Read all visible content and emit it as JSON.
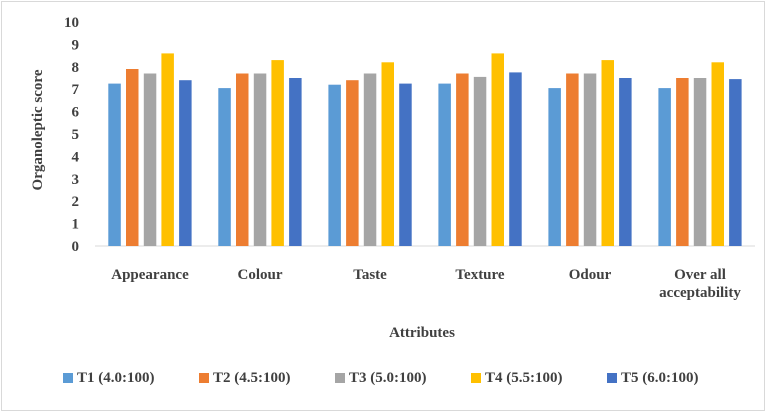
{
  "chart_data": {
    "type": "bar",
    "title": "",
    "xlabel": "Attributes",
    "ylabel": "Organoleptic score",
    "ylim": [
      0,
      10
    ],
    "yticks": [
      0,
      1,
      2,
      3,
      4,
      5,
      6,
      7,
      8,
      9,
      10
    ],
    "grid": false,
    "legend_position": "bottom",
    "categories": [
      [
        "Appearance"
      ],
      [
        "Colour"
      ],
      [
        "Taste"
      ],
      [
        "Texture"
      ],
      [
        "Odour"
      ],
      [
        "Over all",
        "acceptability"
      ]
    ],
    "series": [
      {
        "name": "T1 (4.0:100)",
        "color": "#5b9bd5",
        "values": [
          7.25,
          7.05,
          7.2,
          7.25,
          7.05,
          7.05
        ]
      },
      {
        "name": "T2 (4.5:100)",
        "color": "#ed7d31",
        "values": [
          7.9,
          7.7,
          7.4,
          7.7,
          7.7,
          7.5
        ]
      },
      {
        "name": "T3 (5.0:100)",
        "color": "#a5a5a5",
        "values": [
          7.7,
          7.7,
          7.7,
          7.55,
          7.7,
          7.5
        ]
      },
      {
        "name": "T4 (5.5:100)",
        "color": "#ffc000",
        "values": [
          8.6,
          8.3,
          8.2,
          8.6,
          8.3,
          8.2
        ]
      },
      {
        "name": "T5 (6.0:100)",
        "color": "#4472c4",
        "values": [
          7.4,
          7.5,
          7.25,
          7.75,
          7.5,
          7.45
        ]
      }
    ]
  }
}
